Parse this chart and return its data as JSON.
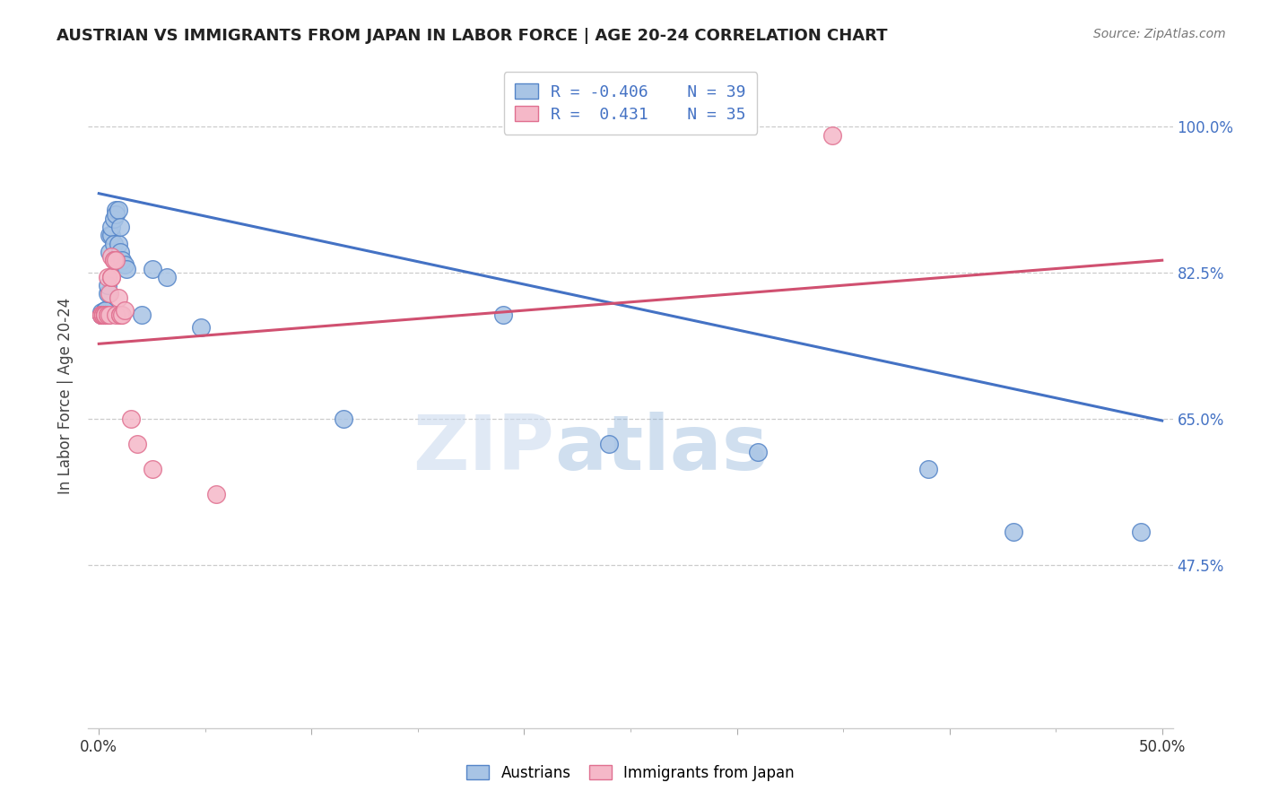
{
  "title": "AUSTRIAN VS IMMIGRANTS FROM JAPAN IN LABOR FORCE | AGE 20-24 CORRELATION CHART",
  "source": "Source: ZipAtlas.com",
  "ylabel": "In Labor Force | Age 20-24",
  "ytick_labels": [
    "100.0%",
    "82.5%",
    "65.0%",
    "47.5%"
  ],
  "ytick_values": [
    1.0,
    0.825,
    0.65,
    0.475
  ],
  "xlim": [
    -0.005,
    0.505
  ],
  "ylim": [
    0.28,
    1.075
  ],
  "blue_R": "-0.406",
  "blue_N": "39",
  "pink_R": "0.431",
  "pink_N": "35",
  "blue_fill": "#a8c4e5",
  "pink_fill": "#f5b8c8",
  "blue_edge": "#5585c8",
  "pink_edge": "#e07090",
  "blue_line_color": "#4472c4",
  "pink_line_color": "#d05070",
  "watermark_zip": "ZIP",
  "watermark_atlas": "atlas",
  "austrians_scatter_x": [
    0.001,
    0.001,
    0.001,
    0.002,
    0.002,
    0.002,
    0.003,
    0.003,
    0.003,
    0.003,
    0.004,
    0.004,
    0.004,
    0.005,
    0.005,
    0.006,
    0.006,
    0.007,
    0.007,
    0.008,
    0.008,
    0.009,
    0.009,
    0.01,
    0.01,
    0.011,
    0.012,
    0.013,
    0.02,
    0.025,
    0.032,
    0.048,
    0.115,
    0.19,
    0.24,
    0.31,
    0.39,
    0.43,
    0.49
  ],
  "austrians_scatter_y": [
    0.775,
    0.778,
    0.775,
    0.775,
    0.775,
    0.775,
    0.78,
    0.78,
    0.775,
    0.775,
    0.8,
    0.81,
    0.775,
    0.85,
    0.87,
    0.87,
    0.88,
    0.86,
    0.89,
    0.9,
    0.895,
    0.86,
    0.9,
    0.85,
    0.88,
    0.84,
    0.835,
    0.83,
    0.775,
    0.83,
    0.82,
    0.76,
    0.65,
    0.775,
    0.62,
    0.61,
    0.59,
    0.515,
    0.515
  ],
  "japan_scatter_x": [
    0.001,
    0.001,
    0.001,
    0.001,
    0.002,
    0.002,
    0.002,
    0.002,
    0.003,
    0.003,
    0.003,
    0.003,
    0.003,
    0.004,
    0.004,
    0.004,
    0.005,
    0.005,
    0.006,
    0.006,
    0.006,
    0.007,
    0.007,
    0.008,
    0.008,
    0.009,
    0.01,
    0.01,
    0.011,
    0.012,
    0.015,
    0.018,
    0.025,
    0.055,
    0.345
  ],
  "japan_scatter_y": [
    0.775,
    0.775,
    0.775,
    0.775,
    0.775,
    0.775,
    0.775,
    0.775,
    0.775,
    0.775,
    0.775,
    0.775,
    0.775,
    0.775,
    0.775,
    0.82,
    0.775,
    0.8,
    0.82,
    0.82,
    0.845,
    0.84,
    0.84,
    0.84,
    0.775,
    0.795,
    0.775,
    0.775,
    0.775,
    0.78,
    0.65,
    0.62,
    0.59,
    0.56,
    0.99
  ],
  "blue_line_x": [
    0.0,
    0.5
  ],
  "blue_line_y": [
    0.92,
    0.648
  ],
  "pink_line_x": [
    0.0,
    0.5
  ],
  "pink_line_y": [
    0.74,
    0.84
  ]
}
